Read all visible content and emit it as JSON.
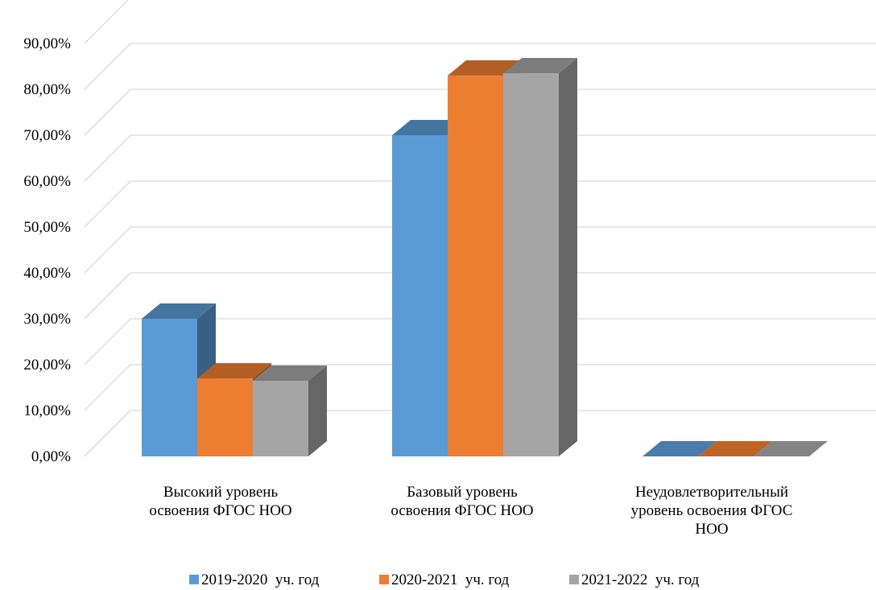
{
  "chart_data": {
    "type": "bar",
    "title": "",
    "xlabel": "",
    "ylabel": "",
    "ylim": [
      0,
      0.9
    ],
    "y_tick_values": [
      0,
      0.1,
      0.2,
      0.3,
      0.4,
      0.5,
      0.6,
      0.7,
      0.8,
      0.9
    ],
    "y_tick_labels": [
      "0,00%",
      "10,00%",
      "20,00%",
      "30,00%",
      "40,00%",
      "50,00%",
      "60,00%",
      "70,00%",
      "80,00%",
      "90,00%"
    ],
    "grid": true,
    "legend_position": "bottom",
    "style": "3d-clustered-column",
    "categories": [
      [
        "Высокий уровень",
        "освоения ФГОС НОО"
      ],
      [
        "Базовый уровень",
        "освоения ФГОС НОО"
      ],
      [
        "Неудовлетворительный",
        "уровень освоения ФГОС",
        "НОО"
      ]
    ],
    "series": [
      {
        "name": "2019-2020  уч. год",
        "values": [
          0.3,
          0.7,
          0.0
        ],
        "color": "#5B9BD5"
      },
      {
        "name": "2020-2021  уч. год",
        "values": [
          0.17,
          0.83,
          0.0
        ],
        "color": "#ED7D31"
      },
      {
        "name": "2021-2022  уч. год",
        "values": [
          0.165,
          0.835,
          0.0
        ],
        "color": "#A5A5A5"
      }
    ]
  }
}
